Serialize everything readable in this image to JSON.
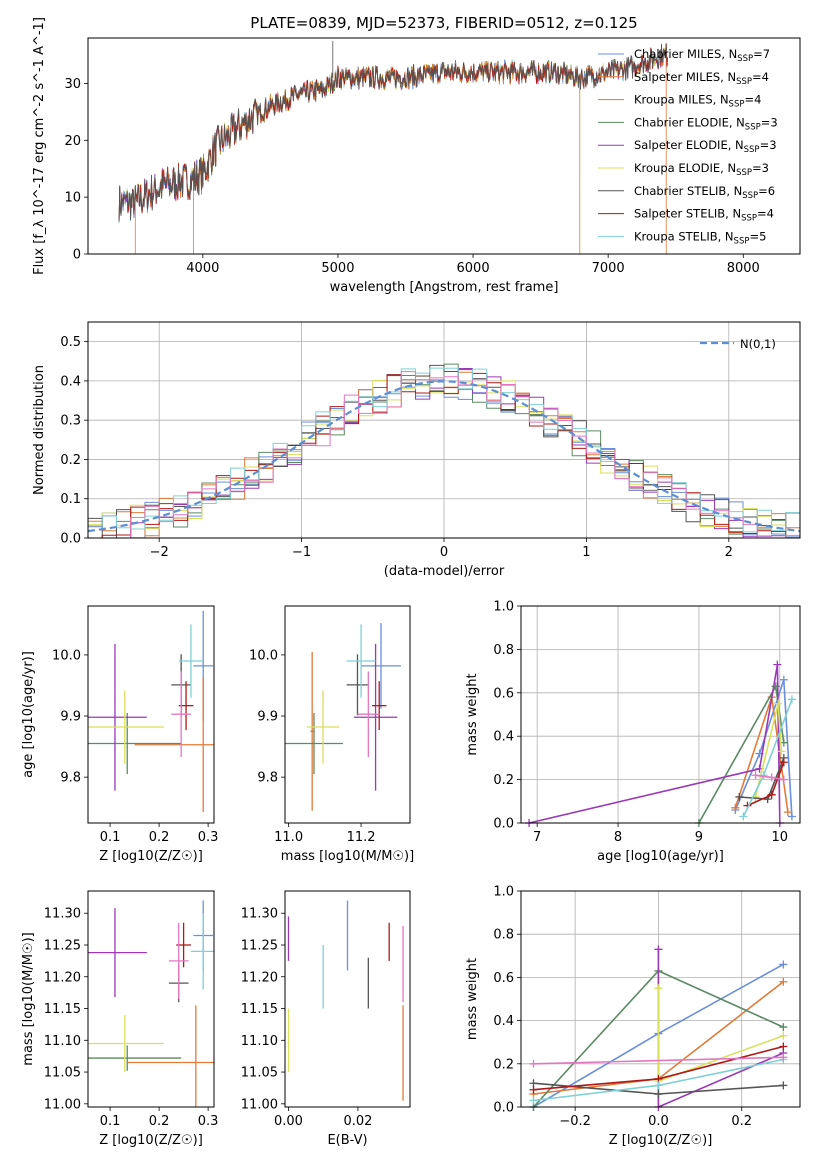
{
  "chart_data": [
    {
      "type": "line",
      "id": "spectrum",
      "title": "PLATE=0839, MJD=52373, FIBERID=0512, z=0.125",
      "xlabel": "wavelength [Angstrom, rest frame]",
      "ylabel": "Flux [f_λ 10^-17 erg cm^-2 s^-1 A^-1]",
      "xlim": [
        3150,
        8420
      ],
      "ylim": [
        0,
        38
      ],
      "xticks": [
        4000,
        5000,
        6000,
        7000,
        8000
      ],
      "yticks": [
        0,
        10,
        20,
        30
      ],
      "series": [
        {
          "name": "Chabrier MILES, N_SSP=7",
          "color": "#6a8fdc"
        },
        {
          "name": "Salpeter MILES, N_SSP=4",
          "color": "#e07b39"
        },
        {
          "name": "Kroupa MILES, N_SSP=4",
          "color": "#c98a2a"
        },
        {
          "name": "Chabrier ELODIE, N_SSP=3",
          "color": "#5b8a64"
        },
        {
          "name": "Salpeter ELODIE, N_SSP=3",
          "color": "#9b38b8"
        },
        {
          "name": "Kroupa ELODIE, N_SSP=3",
          "color": "#d9e05a"
        },
        {
          "name": "Chabrier STELIB, N_SSP=6",
          "color": "#555555"
        },
        {
          "name": "Salpeter STELIB, N_SSP=4",
          "color": "#b01818"
        },
        {
          "name": "Kroupa STELIB, N_SSP=5",
          "color": "#7fd0d6"
        }
      ],
      "spectrum_shape": {
        "x": [
          3380,
          3500,
          3700,
          3900,
          4000,
          4100,
          4300,
          4500,
          4700,
          4900,
          5000,
          5200,
          5500,
          5800,
          6000,
          6300,
          6600,
          6800,
          7000,
          7200,
          7400
        ],
        "y": [
          9,
          9,
          12,
          13,
          14,
          19,
          23,
          26,
          28,
          29,
          31,
          31,
          31,
          32,
          32,
          32,
          32,
          31,
          32,
          33,
          35
        ]
      },
      "cutoffs": [
        {
          "series": 1,
          "x_start": 3500,
          "x_end": 7430
        },
        {
          "series": 2,
          "x_start": 3930,
          "x_end": 6790
        }
      ]
    },
    {
      "type": "step",
      "id": "residuals",
      "xlabel": "(data-model)/error",
      "ylabel": "Normed distribution",
      "xlim": [
        -2.5,
        2.5
      ],
      "ylim": [
        0,
        0.55
      ],
      "xticks": [
        -2,
        -1,
        0,
        1,
        2
      ],
      "xtick_labels": [
        "−2",
        "−1",
        "0",
        "1",
        "2"
      ],
      "yticks": [
        0.0,
        0.1,
        0.2,
        0.3,
        0.4,
        0.5
      ],
      "ytick_labels": [
        "0.0",
        "0.1",
        "0.2",
        "0.3",
        "0.4",
        "0.5"
      ],
      "grid": true,
      "legend": "N(0,1)",
      "legend_position": "top-right"
    },
    {
      "type": "scatter",
      "id": "age-vs-Z",
      "xlabel": "Z [log10(Z/Z☉)]",
      "ylabel": "age  [log10(age/yr)]",
      "xlim": [
        0.055,
        0.312
      ],
      "ylim": [
        9.725,
        10.08
      ],
      "xticks": [
        0.1,
        0.2,
        0.3
      ],
      "yticks": [
        9.8,
        9.9,
        10.0
      ],
      "xtick_labels": [
        "0.1",
        "0.2",
        "0.3"
      ],
      "ytick_labels": [
        "9.8",
        "9.9",
        "10.0"
      ],
      "points": [
        {
          "x": 0.29,
          "y": 9.982,
          "xerr": 0.02,
          "yerr": 0.09,
          "c": 0
        },
        {
          "x": 0.29,
          "y": 9.853,
          "xerr": 0.14,
          "yerr": 0.11,
          "c": 1
        },
        {
          "x": 0.135,
          "y": 9.855,
          "xerr": 0.11,
          "yerr": 0.05,
          "c": 3
        },
        {
          "x": 0.11,
          "y": 9.898,
          "xerr": 0.065,
          "yerr": 0.12,
          "c": 4
        },
        {
          "x": 0.13,
          "y": 9.882,
          "xerr": 0.08,
          "yerr": 0.06,
          "c": 5
        },
        {
          "x": 0.245,
          "y": 9.951,
          "xerr": 0.02,
          "yerr": 0.05,
          "c": 6
        },
        {
          "x": 0.255,
          "y": 9.917,
          "xerr": 0.015,
          "yerr": 0.04,
          "c": 7
        },
        {
          "x": 0.265,
          "y": 9.99,
          "xerr": 0.025,
          "yerr": 0.06,
          "c": 8
        },
        {
          "x": 0.245,
          "y": 9.903,
          "xerr": 0.02,
          "yerr": 0.07,
          "c": 9
        }
      ]
    },
    {
      "type": "scatter",
      "id": "age-vs-mass",
      "xlabel": "mass [log10(M/M☉)]",
      "ylabel": "",
      "xlim": [
        10.99,
        11.335
      ],
      "ylim": [
        9.725,
        10.08
      ],
      "xticks": [
        11.0,
        11.2
      ],
      "yticks": [
        9.8,
        9.9,
        10.0
      ],
      "xtick_labels": [
        "11.0",
        "11.2"
      ],
      "ytick_labels": [
        "9.8",
        "9.9",
        "10.0"
      ],
      "points": [
        {
          "x": 11.255,
          "y": 9.982,
          "xerr": 0.055,
          "yerr": 0.07,
          "c": 0
        },
        {
          "x": 11.065,
          "y": 9.875,
          "xerr": 0.005,
          "yerr": 0.13,
          "c": 1
        },
        {
          "x": 11.07,
          "y": 9.855,
          "xerr": 0.08,
          "yerr": 0.05,
          "c": 3
        },
        {
          "x": 11.24,
          "y": 9.898,
          "xerr": 0.06,
          "yerr": 0.12,
          "c": 4
        },
        {
          "x": 11.095,
          "y": 9.882,
          "xerr": 0.045,
          "yerr": 0.06,
          "c": 5
        },
        {
          "x": 11.19,
          "y": 9.951,
          "xerr": 0.03,
          "yerr": 0.05,
          "c": 6
        },
        {
          "x": 11.25,
          "y": 9.917,
          "xerr": 0.02,
          "yerr": 0.04,
          "c": 7
        },
        {
          "x": 11.2,
          "y": 9.99,
          "xerr": 0.04,
          "yerr": 0.06,
          "c": 8
        },
        {
          "x": 11.22,
          "y": 9.903,
          "xerr": 0.03,
          "yerr": 0.07,
          "c": 9
        }
      ]
    },
    {
      "type": "line",
      "id": "weight-vs-age",
      "xlabel": "age  [log10(age/yr)]",
      "ylabel": "mass weight",
      "xlim": [
        6.8,
        10.25
      ],
      "ylim": [
        0,
        1.0
      ],
      "xticks": [
        7,
        8,
        9,
        10
      ],
      "yticks": [
        0.0,
        0.2,
        0.4,
        0.6,
        0.8,
        1.0
      ],
      "xtick_labels": [
        "7",
        "8",
        "9",
        "10"
      ],
      "ytick_labels": [
        "0.0",
        "0.2",
        "0.4",
        "0.6",
        "0.8",
        "1.0"
      ],
      "grid": true,
      "series": [
        {
          "c": 0,
          "x": [
            9.45,
            9.75,
            10.05,
            10.15
          ],
          "y": [
            0.06,
            0.32,
            0.66,
            0.03
          ]
        },
        {
          "c": 1,
          "x": [
            9.45,
            9.9,
            10.1
          ],
          "y": [
            0.07,
            0.58,
            0.05
          ]
        },
        {
          "c": 3,
          "x": [
            9.0,
            9.95,
            10.05
          ],
          "y": [
            0.0,
            0.63,
            0.37
          ]
        },
        {
          "c": 4,
          "x": [
            6.9,
            9.75,
            9.97,
            10.0
          ],
          "y": [
            0.0,
            0.25,
            0.73,
            0.0
          ]
        },
        {
          "c": 5,
          "x": [
            9.7,
            9.98,
            10.02
          ],
          "y": [
            0.12,
            0.55,
            0.33
          ]
        },
        {
          "c": 6,
          "x": [
            9.5,
            9.85,
            10.05
          ],
          "y": [
            0.12,
            0.11,
            0.3
          ]
        },
        {
          "c": 7,
          "x": [
            9.6,
            9.9,
            10.05
          ],
          "y": [
            0.08,
            0.13,
            0.28
          ]
        },
        {
          "c": 8,
          "x": [
            9.55,
            9.8,
            10.15
          ],
          "y": [
            0.03,
            0.22,
            0.57
          ]
        },
        {
          "c": 9,
          "x": [
            9.7,
            9.9,
            10.05
          ],
          "y": [
            0.22,
            0.21,
            0.2
          ]
        }
      ]
    },
    {
      "type": "scatter",
      "id": "mass-vs-Z",
      "xlabel": "Z [log10(Z/Z☉)]",
      "ylabel": "mass [log10(M/M☉)]",
      "xlim": [
        0.055,
        0.312
      ],
      "ylim": [
        10.995,
        11.335
      ],
      "xticks": [
        0.1,
        0.2,
        0.3
      ],
      "yticks": [
        11.0,
        11.05,
        11.1,
        11.15,
        11.2,
        11.25,
        11.3
      ],
      "xtick_labels": [
        "0.1",
        "0.2",
        "0.3"
      ],
      "ytick_labels": [
        "11.00",
        "11.05",
        "11.10",
        "11.15",
        "11.20",
        "11.25",
        "11.30"
      ],
      "points": [
        {
          "x": 0.29,
          "y": 11.265,
          "xerr": 0.02,
          "yerr": 0.055,
          "c": 0
        },
        {
          "x": 0.275,
          "y": 11.065,
          "xerr": 0.14,
          "yerr": 0.09,
          "c": 1
        },
        {
          "x": 0.135,
          "y": 11.072,
          "xerr": 0.11,
          "yerr": 0.02,
          "c": 3
        },
        {
          "x": 0.11,
          "y": 11.238,
          "xerr": 0.065,
          "yerr": 0.07,
          "c": 4
        },
        {
          "x": 0.13,
          "y": 11.095,
          "xerr": 0.08,
          "yerr": 0.045,
          "c": 5
        },
        {
          "x": 0.24,
          "y": 11.19,
          "xerr": 0.02,
          "yerr": 0.03,
          "c": 6
        },
        {
          "x": 0.25,
          "y": 11.25,
          "xerr": 0.015,
          "yerr": 0.035,
          "c": 7
        },
        {
          "x": 0.29,
          "y": 11.24,
          "xerr": 0.025,
          "yerr": 0.06,
          "c": 8
        },
        {
          "x": 0.24,
          "y": 11.225,
          "xerr": 0.02,
          "yerr": 0.06,
          "c": 9
        }
      ]
    },
    {
      "type": "scatter",
      "id": "mass-vs-EBV",
      "xlabel": "E(B-V)",
      "ylabel": "",
      "xlim": [
        -0.001,
        0.035
      ],
      "ylim": [
        10.995,
        11.335
      ],
      "xticks": [
        0.0,
        0.02
      ],
      "yticks": [
        11.0,
        11.05,
        11.1,
        11.15,
        11.2,
        11.25,
        11.3
      ],
      "xtick_labels": [
        "0.00",
        "0.02"
      ],
      "ytick_labels": [
        "11.00",
        "11.05",
        "11.10",
        "11.15",
        "11.20",
        "11.25",
        "11.30"
      ],
      "points": [
        {
          "x": 0.017,
          "y": 11.265,
          "yerr": 0.055,
          "c": 0
        },
        {
          "x": 0.033,
          "y": 11.08,
          "yerr": 0.075,
          "c": 1
        },
        {
          "x": 0.0,
          "y": 11.26,
          "yerr": 0.035,
          "c": 4
        },
        {
          "x": 0.0,
          "y": 11.1,
          "yerr": 0.05,
          "c": 5
        },
        {
          "x": 0.01,
          "y": 11.2,
          "yerr": 0.05,
          "c": 8
        },
        {
          "x": 0.023,
          "y": 11.19,
          "yerr": 0.04,
          "c": 6
        },
        {
          "x": 0.029,
          "y": 11.255,
          "yerr": 0.03,
          "c": 7
        },
        {
          "x": 0.033,
          "y": 11.22,
          "yerr": 0.06,
          "c": 9
        }
      ]
    },
    {
      "type": "line",
      "id": "weight-vs-Z",
      "xlabel": "Z [log10(Z/Z☉)]",
      "ylabel": "mass weight",
      "xlim": [
        -0.33,
        0.34
      ],
      "ylim": [
        0,
        1.0
      ],
      "xticks": [
        -0.2,
        0.0,
        0.2
      ],
      "yticks": [
        0.0,
        0.2,
        0.4,
        0.6,
        0.8,
        1.0
      ],
      "xtick_labels": [
        "−0.2",
        "0.0",
        "0.2"
      ],
      "ytick_labels": [
        "0.0",
        "0.2",
        "0.4",
        "0.6",
        "0.8",
        "1.0"
      ],
      "grid": true,
      "series": [
        {
          "c": 0,
          "x": [
            -0.3,
            0.0,
            0.3
          ],
          "y": [
            0.0,
            0.34,
            0.66
          ]
        },
        {
          "c": 1,
          "x": [
            -0.3,
            0.0,
            0.3
          ],
          "y": [
            0.06,
            0.13,
            0.58
          ]
        },
        {
          "c": 3,
          "x": [
            -0.3,
            0.0,
            0.3
          ],
          "y": [
            0.0,
            0.63,
            0.37
          ]
        },
        {
          "c": 4,
          "x": [
            0.0,
            0.0,
            0.3
          ],
          "y": [
            0.73,
            0.0,
            0.25
          ]
        },
        {
          "c": 5,
          "x": [
            0.0,
            0.0,
            0.3
          ],
          "y": [
            0.55,
            0.12,
            0.33
          ]
        },
        {
          "c": 6,
          "x": [
            -0.3,
            0.0,
            0.3
          ],
          "y": [
            0.11,
            0.06,
            0.1
          ]
        },
        {
          "c": 7,
          "x": [
            -0.3,
            0.0,
            0.3
          ],
          "y": [
            0.08,
            0.13,
            0.28
          ]
        },
        {
          "c": 8,
          "x": [
            -0.3,
            0.0,
            0.3
          ],
          "y": [
            0.03,
            0.1,
            0.22
          ]
        },
        {
          "c": 9,
          "x": [
            -0.3,
            0.3
          ],
          "y": [
            0.2,
            0.23
          ]
        }
      ]
    }
  ],
  "colors": [
    "#6a8fdc",
    "#e07b39",
    "#c98a2a",
    "#5b8a64",
    "#9b38b8",
    "#d9e05a",
    "#555555",
    "#b01818",
    "#7fd0d6",
    "#e377c2"
  ]
}
